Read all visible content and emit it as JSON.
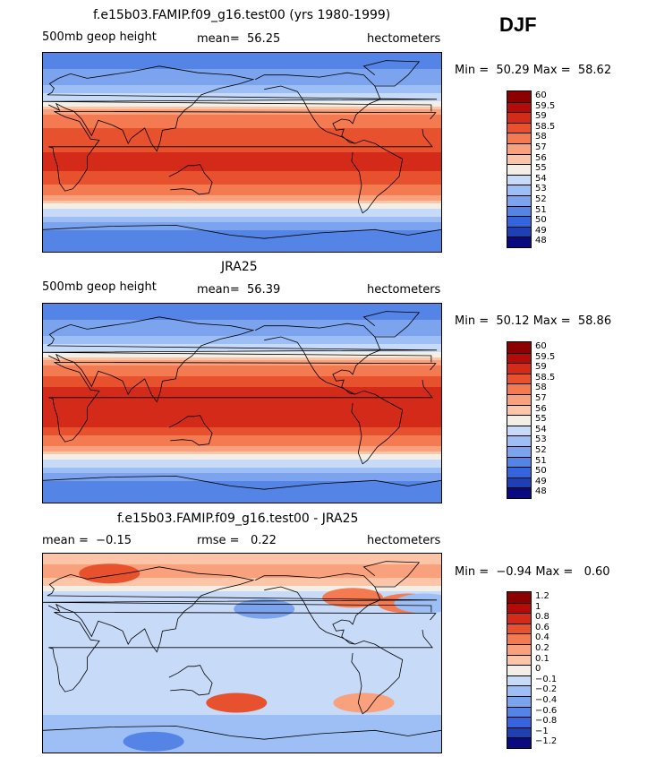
{
  "season": "DJF",
  "chart_data": [
    {
      "type": "heatmap",
      "title": "f.e15b03.FAMIP.f09_g16.test00 (yrs 1980-1999)",
      "left_label": "500mb geop height",
      "center_label": "mean=  56.25",
      "right_label": "hectometers",
      "stats": "Min =  50.29 Max =  58.62",
      "mean": 56.25,
      "min": 50.29,
      "max": 58.62,
      "units": "hectometers",
      "colorbar_labels": [
        "60",
        "59.5",
        "59",
        "58.5",
        "58",
        "57",
        "56",
        "55",
        "54",
        "53",
        "52",
        "51",
        "50",
        "49",
        "48"
      ],
      "colorbar_colors": [
        "#8c0000",
        "#b40a0a",
        "#d42a1a",
        "#e8512e",
        "#f47a52",
        "#f9a07c",
        "#fdc5a8",
        "#f4efe6",
        "#c7daf8",
        "#9ebff5",
        "#7ca3ee",
        "#5485e6",
        "#3465df",
        "#1f40b3",
        "#0a0a80"
      ],
      "latitude_bands": [
        {
          "lat": 90,
          "value": 50.3
        },
        {
          "lat": 75,
          "value": 51.0
        },
        {
          "lat": 60,
          "value": 52.0
        },
        {
          "lat": 50,
          "value": 53.5
        },
        {
          "lat": 42,
          "value": 55.0
        },
        {
          "lat": 35,
          "value": 56.8
        },
        {
          "lat": 25,
          "value": 57.8
        },
        {
          "lat": 10,
          "value": 58.5
        },
        {
          "lat": 0,
          "value": 58.5
        },
        {
          "lat": -15,
          "value": 58.6
        },
        {
          "lat": -28,
          "value": 58.0
        },
        {
          "lat": -38,
          "value": 57.0
        },
        {
          "lat": -45,
          "value": 55.5
        },
        {
          "lat": -52,
          "value": 54.0
        },
        {
          "lat": -60,
          "value": 52.5
        },
        {
          "lat": -70,
          "value": 51.0
        },
        {
          "lat": -90,
          "value": 50.5
        }
      ]
    },
    {
      "type": "heatmap",
      "title": "JRA25",
      "left_label": "500mb geop height",
      "center_label": "mean=  56.39",
      "right_label": "hectometers",
      "stats": "Min =  50.12 Max =  58.86",
      "mean": 56.39,
      "min": 50.12,
      "max": 58.86,
      "units": "hectometers",
      "colorbar_labels": [
        "60",
        "59.5",
        "59",
        "58.5",
        "58",
        "57",
        "56",
        "55",
        "54",
        "53",
        "52",
        "51",
        "50",
        "49",
        "48"
      ],
      "colorbar_colors": [
        "#8c0000",
        "#b40a0a",
        "#d42a1a",
        "#e8512e",
        "#f47a52",
        "#f9a07c",
        "#fdc5a8",
        "#f4efe6",
        "#c7daf8",
        "#9ebff5",
        "#7ca3ee",
        "#5485e6",
        "#3465df",
        "#1f40b3",
        "#0a0a80"
      ],
      "latitude_bands": [
        {
          "lat": 90,
          "value": 50.2
        },
        {
          "lat": 75,
          "value": 51.0
        },
        {
          "lat": 60,
          "value": 52.0
        },
        {
          "lat": 50,
          "value": 53.5
        },
        {
          "lat": 42,
          "value": 55.0
        },
        {
          "lat": 35,
          "value": 56.8
        },
        {
          "lat": 25,
          "value": 57.9
        },
        {
          "lat": 10,
          "value": 58.7
        },
        {
          "lat": 0,
          "value": 58.7
        },
        {
          "lat": -15,
          "value": 58.8
        },
        {
          "lat": -28,
          "value": 58.2
        },
        {
          "lat": -38,
          "value": 57.0
        },
        {
          "lat": -45,
          "value": 55.5
        },
        {
          "lat": -52,
          "value": 54.0
        },
        {
          "lat": -60,
          "value": 52.5
        },
        {
          "lat": -70,
          "value": 51.0
        },
        {
          "lat": -90,
          "value": 50.5
        }
      ]
    },
    {
      "type": "heatmap",
      "title": "f.e15b03.FAMIP.f09_g16.test00 - JRA25",
      "left_label": "mean =  −0.15",
      "center_label": "rmse =   0.22",
      "right_label": "hectometers",
      "stats": "Min =  −0.94 Max =   0.60",
      "mean": -0.15,
      "rmse": 0.22,
      "min": -0.94,
      "max": 0.6,
      "units": "hectometers",
      "colorbar_labels": [
        "1.2",
        "1",
        "0.8",
        "0.6",
        "0.4",
        "0.2",
        "0.1",
        "0",
        "−0.1",
        "−0.2",
        "−0.4",
        "−0.6",
        "−0.8",
        "−1",
        "−1.2"
      ],
      "colorbar_colors": [
        "#8c0000",
        "#b40a0a",
        "#d42a1a",
        "#e8512e",
        "#f47a52",
        "#f9a07c",
        "#fdc5a8",
        "#f4efe6",
        "#c7daf8",
        "#9ebff5",
        "#7ca3ee",
        "#5485e6",
        "#3465df",
        "#1f40b3",
        "#0a0a80"
      ],
      "latitude_bands": [
        {
          "lat": 90,
          "value": 0.05
        },
        {
          "lat": 70,
          "value": 0.15
        },
        {
          "lat": 55,
          "value": -0.1
        },
        {
          "lat": 40,
          "value": -0.2
        },
        {
          "lat": 20,
          "value": -0.15
        },
        {
          "lat": 0,
          "value": -0.15
        },
        {
          "lat": -20,
          "value": -0.2
        },
        {
          "lat": -40,
          "value": -0.1
        },
        {
          "lat": -55,
          "value": -0.2
        },
        {
          "lat": -70,
          "value": -0.4
        },
        {
          "lat": -90,
          "value": -0.3
        }
      ],
      "anomalies": [
        {
          "lon": 60,
          "lat": 72,
          "value": 0.5
        },
        {
          "lon": 280,
          "lat": 50,
          "value": 0.3
        },
        {
          "lon": 330,
          "lat": 45,
          "value": 0.3
        },
        {
          "lon": 175,
          "lat": -45,
          "value": 0.45
        },
        {
          "lon": 290,
          "lat": -45,
          "value": 0.2
        },
        {
          "lon": 200,
          "lat": 40,
          "value": -0.45
        },
        {
          "lon": 345,
          "lat": 45,
          "value": -0.3
        },
        {
          "lon": 100,
          "lat": -80,
          "value": -0.7
        }
      ]
    }
  ]
}
